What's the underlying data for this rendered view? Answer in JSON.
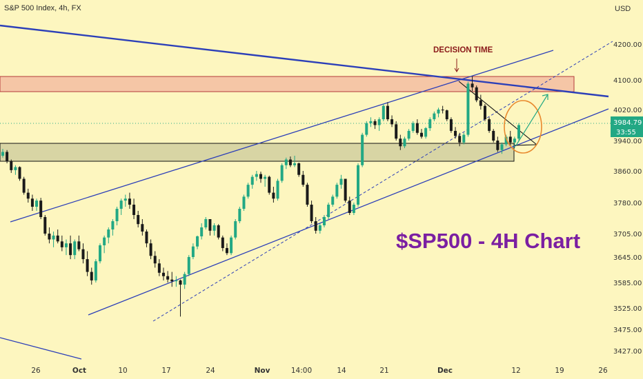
{
  "header": {
    "title": "S&P 500 Index, 4h, FX",
    "currency": "USD"
  },
  "price_label": {
    "price": "3984.79",
    "countdown": "33:55"
  },
  "annotations": {
    "decision": "DECISION TIME",
    "headline": "$SP500 - 4H Chart"
  },
  "colors": {
    "up": "#22a884",
    "down": "#1a1a1a",
    "trend": "#2c3fb8",
    "accent": "#7b1fa2",
    "zone_top": "#f5c6a6",
    "zone_bottom": "#d6d4a2",
    "circle": "#e8892e",
    "price_tag": "#22a884"
  },
  "chart_data": {
    "type": "candlestick",
    "title": "S&P 500 Index, 4h, FX",
    "yaxis": {
      "unit": "USD",
      "ticks": [
        4200,
        4100,
        4020,
        3940,
        3860,
        3780,
        3705,
        3645,
        3585,
        3525,
        3475,
        3427
      ],
      "tick_labels": [
        "4200.00",
        "4100.00",
        "4020.00",
        "3940.00",
        "3860.00",
        "3780.00",
        "3705.00",
        "3645.00",
        "3585.00",
        "3525.00",
        "3475.00",
        "3427.00"
      ]
    },
    "xaxis": {
      "ticks": [
        "26",
        "Oct",
        "10",
        "17",
        "24",
        "Nov",
        "14:00",
        "14",
        "21",
        "Dec",
        "12",
        "19",
        "26"
      ]
    },
    "series": [
      {
        "values": [
          [
            3900,
            3918,
            3895,
            3910
          ],
          [
            3910,
            3915,
            3880,
            3885
          ],
          [
            3885,
            3890,
            3855,
            3862
          ],
          [
            3862,
            3875,
            3850,
            3870
          ],
          [
            3870,
            3872,
            3835,
            3840
          ],
          [
            3840,
            3845,
            3800,
            3805
          ],
          [
            3805,
            3815,
            3780,
            3790
          ],
          [
            3790,
            3800,
            3760,
            3770
          ],
          [
            3770,
            3790,
            3760,
            3785
          ],
          [
            3785,
            3792,
            3740,
            3745
          ],
          [
            3745,
            3750,
            3700,
            3705
          ],
          [
            3705,
            3720,
            3680,
            3690
          ],
          [
            3690,
            3710,
            3670,
            3700
          ],
          [
            3700,
            3715,
            3680,
            3685
          ],
          [
            3685,
            3700,
            3660,
            3670
          ],
          [
            3670,
            3690,
            3650,
            3680
          ],
          [
            3680,
            3700,
            3640,
            3650
          ],
          [
            3650,
            3690,
            3640,
            3685
          ],
          [
            3685,
            3700,
            3660,
            3665
          ],
          [
            3665,
            3680,
            3630,
            3640
          ],
          [
            3640,
            3660,
            3600,
            3610
          ],
          [
            3610,
            3620,
            3580,
            3590
          ],
          [
            3590,
            3640,
            3585,
            3635
          ],
          [
            3635,
            3680,
            3630,
            3675
          ],
          [
            3675,
            3700,
            3655,
            3695
          ],
          [
            3695,
            3720,
            3680,
            3715
          ],
          [
            3715,
            3740,
            3700,
            3735
          ],
          [
            3735,
            3770,
            3725,
            3765
          ],
          [
            3765,
            3790,
            3750,
            3785
          ],
          [
            3785,
            3800,
            3770,
            3790
          ],
          [
            3790,
            3805,
            3765,
            3775
          ],
          [
            3775,
            3790,
            3740,
            3750
          ],
          [
            3750,
            3760,
            3720,
            3728
          ],
          [
            3728,
            3740,
            3700,
            3710
          ],
          [
            3710,
            3715,
            3670,
            3680
          ],
          [
            3680,
            3690,
            3640,
            3648
          ],
          [
            3648,
            3660,
            3620,
            3630
          ],
          [
            3630,
            3640,
            3600,
            3608
          ],
          [
            3608,
            3620,
            3590,
            3600
          ],
          [
            3600,
            3612,
            3585,
            3592
          ],
          [
            3592,
            3610,
            3575,
            3588
          ],
          [
            3588,
            3600,
            3575,
            3590
          ],
          [
            3590,
            3592,
            3505,
            3580
          ],
          [
            3580,
            3610,
            3570,
            3605
          ],
          [
            3605,
            3650,
            3600,
            3645
          ],
          [
            3645,
            3680,
            3640,
            3672
          ],
          [
            3672,
            3700,
            3665,
            3698
          ],
          [
            3698,
            3730,
            3690,
            3720
          ],
          [
            3720,
            3745,
            3715,
            3740
          ],
          [
            3740,
            3735,
            3700,
            3712
          ],
          [
            3712,
            3730,
            3700,
            3725
          ],
          [
            3725,
            3728,
            3690,
            3695
          ],
          [
            3695,
            3700,
            3660,
            3668
          ],
          [
            3668,
            3680,
            3650,
            3655
          ],
          [
            3655,
            3700,
            3650,
            3695
          ],
          [
            3695,
            3740,
            3690,
            3735
          ],
          [
            3735,
            3770,
            3730,
            3765
          ],
          [
            3765,
            3800,
            3760,
            3795
          ],
          [
            3795,
            3830,
            3790,
            3825
          ],
          [
            3825,
            3850,
            3815,
            3845
          ],
          [
            3845,
            3860,
            3835,
            3852
          ],
          [
            3852,
            3858,
            3830,
            3840
          ],
          [
            3840,
            3850,
            3820,
            3845
          ],
          [
            3845,
            3848,
            3800,
            3805
          ],
          [
            3805,
            3820,
            3780,
            3790
          ],
          [
            3790,
            3840,
            3785,
            3835
          ],
          [
            3835,
            3880,
            3830,
            3875
          ],
          [
            3875,
            3895,
            3865,
            3890
          ],
          [
            3890,
            3898,
            3870,
            3875
          ],
          [
            3875,
            3900,
            3870,
            3880
          ],
          [
            3880,
            3882,
            3845,
            3850
          ],
          [
            3850,
            3860,
            3820,
            3825
          ],
          [
            3825,
            3830,
            3770,
            3775
          ],
          [
            3775,
            3785,
            3730,
            3735
          ],
          [
            3735,
            3745,
            3705,
            3712
          ],
          [
            3712,
            3730,
            3705,
            3725
          ],
          [
            3725,
            3750,
            3720,
            3745
          ],
          [
            3745,
            3780,
            3740,
            3775
          ],
          [
            3775,
            3800,
            3770,
            3795
          ],
          [
            3795,
            3830,
            3790,
            3825
          ],
          [
            3825,
            3850,
            3815,
            3840
          ],
          [
            3840,
            3835,
            3780,
            3785
          ],
          [
            3785,
            3795,
            3750,
            3755
          ],
          [
            3755,
            3780,
            3750,
            3775
          ],
          [
            3775,
            3880,
            3770,
            3875
          ],
          [
            3875,
            3960,
            3870,
            3955
          ],
          [
            3955,
            3990,
            3950,
            3985
          ],
          [
            3985,
            4000,
            3975,
            3990
          ],
          [
            3990,
            3995,
            3970,
            3980
          ],
          [
            3980,
            4000,
            3965,
            3995
          ],
          [
            3995,
            4035,
            3990,
            4030
          ],
          [
            4030,
            4040,
            3990,
            3995
          ],
          [
            3995,
            4005,
            3975,
            3982
          ],
          [
            3982,
            3990,
            3940,
            3945
          ],
          [
            3945,
            3955,
            3915,
            3925
          ],
          [
            3925,
            3950,
            3920,
            3945
          ],
          [
            3945,
            3970,
            3940,
            3965
          ],
          [
            3965,
            3990,
            3960,
            3985
          ],
          [
            3985,
            3995,
            3955,
            3960
          ],
          [
            3960,
            3970,
            3945,
            3950
          ],
          [
            3950,
            3975,
            3945,
            3972
          ],
          [
            3972,
            4000,
            3965,
            3995
          ],
          [
            3995,
            4015,
            3990,
            4010
          ],
          [
            4010,
            4025,
            4000,
            4020
          ],
          [
            4020,
            4030,
            4010,
            4018
          ],
          [
            4018,
            4020,
            3990,
            3995
          ],
          [
            3995,
            4000,
            3960,
            3965
          ],
          [
            3965,
            3975,
            3945,
            3952
          ],
          [
            3952,
            3960,
            3925,
            3935
          ],
          [
            3935,
            3960,
            3930,
            3955
          ],
          [
            3955,
            4095,
            3950,
            4090
          ],
          [
            4090,
            4110,
            4070,
            4080
          ],
          [
            4080,
            4085,
            4040,
            4045
          ],
          [
            4045,
            4060,
            4020,
            4030
          ],
          [
            4030,
            4035,
            3990,
            3995
          ],
          [
            3995,
            4000,
            3960,
            3965
          ],
          [
            3965,
            3970,
            3935,
            3940
          ],
          [
            3940,
            3950,
            3910,
            3915
          ],
          [
            3915,
            3935,
            3905,
            3930
          ],
          [
            3930,
            3955,
            3925,
            3950
          ],
          [
            3950,
            3965,
            3925,
            3935
          ],
          [
            3935,
            3950,
            3920,
            3945
          ],
          [
            3945,
            3985,
            3940,
            3980
          ]
        ]
      }
    ]
  }
}
